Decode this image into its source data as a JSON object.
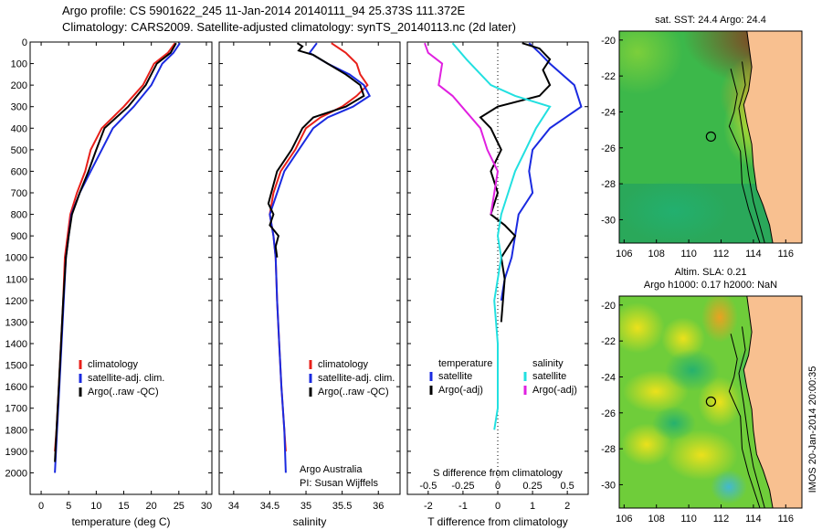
{
  "header": {
    "line1": "Argo profile: CS 5901622_245 11-Jan-2014 20140111_94 25.373S 111.372E",
    "line2": "Climatology: CARS2009. Satellite-adjusted climatology: synTS_20140113.nc (2d later)"
  },
  "colors": {
    "climatology": "#e8201a",
    "satellite": "#1a2ae0",
    "argo": "#000000",
    "sat_salinity": "#22e0e0",
    "argo_salinity": "#e020e0"
  },
  "chart_data": [
    {
      "type": "line",
      "name": "temperature-profile",
      "xlabel": "temperature (deg C)",
      "ylabel": "",
      "xlim": [
        -2,
        31
      ],
      "ylim": [
        0,
        2100
      ],
      "xticks": [
        0,
        5,
        10,
        15,
        20,
        25,
        30
      ],
      "yticks": [
        0,
        100,
        200,
        300,
        400,
        500,
        600,
        700,
        800,
        900,
        1000,
        1100,
        1200,
        1300,
        1400,
        1500,
        1600,
        1700,
        1800,
        1900,
        2000
      ],
      "legend": [
        "climatology",
        "satellite-adj. clim.",
        "Argo(..raw -QC)"
      ],
      "series": [
        {
          "key": "clim",
          "color": "#e8201a",
          "points": [
            [
              24.3,
              5
            ],
            [
              23,
              50
            ],
            [
              20.5,
              100
            ],
            [
              18.5,
              200
            ],
            [
              15,
              300
            ],
            [
              11,
              400
            ],
            [
              9,
              500
            ],
            [
              8,
              600
            ],
            [
              6.5,
              700
            ],
            [
              5.3,
              800
            ],
            [
              4.8,
              900
            ],
            [
              4.3,
              1000
            ],
            [
              4,
              1200
            ],
            [
              3.6,
              1400
            ],
            [
              3.2,
              1600
            ],
            [
              2.8,
              1800
            ],
            [
              2.5,
              1900
            ]
          ]
        },
        {
          "key": "sat",
          "color": "#1a2ae0",
          "points": [
            [
              25.2,
              5
            ],
            [
              24,
              50
            ],
            [
              22,
              100
            ],
            [
              20,
              200
            ],
            [
              16.8,
              300
            ],
            [
              13,
              400
            ],
            [
              11,
              500
            ],
            [
              9,
              600
            ],
            [
              7,
              700
            ],
            [
              5.5,
              800
            ],
            [
              5,
              900
            ],
            [
              4.5,
              1000
            ],
            [
              4.1,
              1200
            ],
            [
              3.7,
              1400
            ],
            [
              3.3,
              1600
            ],
            [
              2.9,
              1800
            ],
            [
              2.5,
              2000
            ]
          ]
        },
        {
          "key": "argo",
          "color": "#000000",
          "points": [
            [
              24.5,
              5
            ],
            [
              23.5,
              50
            ],
            [
              21,
              100
            ],
            [
              19,
              200
            ],
            [
              15.8,
              300
            ],
            [
              11.5,
              400
            ],
            [
              10,
              500
            ],
            [
              8.6,
              600
            ],
            [
              7,
              700
            ],
            [
              5.6,
              800
            ],
            [
              5,
              900
            ],
            [
              4.5,
              1000
            ],
            [
              4,
              1200
            ],
            [
              3.6,
              1400
            ],
            [
              3.2,
              1600
            ],
            [
              2.8,
              1800
            ],
            [
              2.5,
              1950
            ]
          ]
        }
      ]
    },
    {
      "type": "line",
      "name": "salinity-profile",
      "xlabel": "salinity",
      "ylabel": "",
      "xlim": [
        33.8,
        36.3
      ],
      "ylim": [
        0,
        2100
      ],
      "xticks": [
        34,
        34.5,
        35,
        35.5,
        36
      ],
      "legend": [
        "climatology",
        "satellite-adj. clim.",
        "Argo(..raw -QC)"
      ],
      "annotation": [
        "Argo Australia",
        "PI: Susan Wijffels"
      ],
      "series": [
        {
          "key": "clim",
          "color": "#e8201a",
          "points": [
            [
              35.35,
              5
            ],
            [
              35.55,
              50
            ],
            [
              35.7,
              100
            ],
            [
              35.75,
              150
            ],
            [
              35.85,
              200
            ],
            [
              35.7,
              250
            ],
            [
              35.5,
              300
            ],
            [
              35.2,
              350
            ],
            [
              35,
              400
            ],
            [
              34.85,
              500
            ],
            [
              34.65,
              600
            ],
            [
              34.55,
              700
            ],
            [
              34.5,
              800
            ],
            [
              34.55,
              900
            ],
            [
              34.58,
              1000
            ],
            [
              34.6,
              1200
            ],
            [
              34.63,
              1400
            ],
            [
              34.66,
              1600
            ],
            [
              34.7,
              1800
            ],
            [
              34.72,
              1900
            ]
          ]
        },
        {
          "key": "sat",
          "color": "#1a2ae0",
          "points": [
            [
              35.15,
              5
            ],
            [
              35.05,
              50
            ],
            [
              35.3,
              100
            ],
            [
              35.6,
              150
            ],
            [
              35.8,
              200
            ],
            [
              35.88,
              250
            ],
            [
              35.65,
              300
            ],
            [
              35.3,
              350
            ],
            [
              35.1,
              400
            ],
            [
              34.9,
              500
            ],
            [
              34.7,
              600
            ],
            [
              34.6,
              700
            ],
            [
              34.5,
              800
            ],
            [
              34.55,
              900
            ],
            [
              34.58,
              1000
            ],
            [
              34.6,
              1200
            ],
            [
              34.63,
              1400
            ],
            [
              34.66,
              1600
            ],
            [
              34.7,
              1800
            ],
            [
              34.72,
              2000
            ]
          ]
        },
        {
          "key": "argo",
          "color": "#000000",
          "points": [
            [
              34.88,
              5
            ],
            [
              34.95,
              20
            ],
            [
              34.9,
              40
            ],
            [
              35.1,
              60
            ],
            [
              35.3,
              100
            ],
            [
              35.55,
              150
            ],
            [
              35.75,
              200
            ],
            [
              35.8,
              250
            ],
            [
              35.55,
              300
            ],
            [
              35.1,
              350
            ],
            [
              34.95,
              400
            ],
            [
              34.8,
              500
            ],
            [
              34.6,
              600
            ],
            [
              34.52,
              700
            ],
            [
              34.48,
              750
            ],
            [
              34.55,
              800
            ],
            [
              34.5,
              850
            ],
            [
              34.62,
              900
            ],
            [
              34.58,
              950
            ],
            [
              34.6,
              1000
            ]
          ]
        }
      ]
    },
    {
      "type": "line",
      "name": "difference-profile",
      "xlabel": "T difference from climatology",
      "x2label": "S difference from climatology",
      "xlim": [
        -2.6,
        2.6
      ],
      "ylim": [
        0,
        2100
      ],
      "xticks": [
        -2,
        -1,
        0,
        1,
        2
      ],
      "x2ticklabels": [
        "-0.5",
        "-0.25",
        "0",
        "0.25",
        "0.5"
      ],
      "legend": {
        "temperature": [
          "satellite",
          "Argo(-adj)"
        ],
        "salinity": [
          "satellite",
          "Argo(-adj)"
        ]
      },
      "series": [
        {
          "key": "T sat",
          "color": "#1a2ae0",
          "points": [
            [
              0.9,
              5
            ],
            [
              1.2,
              50
            ],
            [
              1.5,
              100
            ],
            [
              2.2,
              200
            ],
            [
              2.4,
              300
            ],
            [
              1.5,
              400
            ],
            [
              1,
              500
            ],
            [
              0.9,
              600
            ],
            [
              1,
              700
            ],
            [
              0.6,
              800
            ],
            [
              0.5,
              900
            ],
            [
              0.4,
              1000
            ],
            [
              0.2,
              1100
            ],
            [
              0.1,
              1200
            ]
          ]
        },
        {
          "key": "T argo",
          "color": "#000000",
          "points": [
            [
              0.7,
              5
            ],
            [
              1.2,
              30
            ],
            [
              1.5,
              80
            ],
            [
              1.3,
              130
            ],
            [
              1.5,
              200
            ],
            [
              1.2,
              250
            ],
            [
              0,
              300
            ],
            [
              -0.5,
              350
            ],
            [
              -0.2,
              400
            ],
            [
              0.1,
              500
            ],
            [
              -0.2,
              600
            ],
            [
              0,
              700
            ],
            [
              -0.2,
              800
            ],
            [
              0.2,
              850
            ],
            [
              0.5,
              900
            ],
            [
              0.1,
              1000
            ],
            [
              0.2,
              1100
            ],
            [
              0.1,
              1300
            ]
          ]
        },
        {
          "key": "S sat",
          "color": "#22e0e0",
          "points": [
            [
              -1.3,
              5
            ],
            [
              -0.9,
              80
            ],
            [
              -0.2,
              200
            ],
            [
              0.5,
              250
            ],
            [
              1.5,
              300
            ],
            [
              1.1,
              400
            ],
            [
              0.8,
              500
            ],
            [
              0.5,
              600
            ],
            [
              0.3,
              700
            ],
            [
              0.1,
              800
            ],
            [
              0,
              900
            ],
            [
              0.1,
              1000
            ],
            [
              -0.1,
              1200
            ],
            [
              0,
              1400
            ],
            [
              0,
              1700
            ],
            [
              -0.1,
              1800
            ]
          ]
        },
        {
          "key": "S argo",
          "color": "#e020e0",
          "points": [
            [
              -2.1,
              5
            ],
            [
              -2,
              50
            ],
            [
              -1.6,
              100
            ],
            [
              -1.7,
              200
            ],
            [
              -1.3,
              250
            ],
            [
              -0.5,
              400
            ],
            [
              -0.3,
              500
            ],
            [
              0,
              600
            ],
            [
              -0.1,
              700
            ],
            [
              -0.2,
              800
            ]
          ]
        }
      ]
    },
    {
      "type": "heatmap",
      "name": "sst-map",
      "title": "sat. SST: 24.4 Argo: 24.4",
      "xlim": [
        105.7,
        117
      ],
      "ylim": [
        -31.3,
        -19.5
      ],
      "xticks": [
        106,
        108,
        110,
        112,
        114,
        116
      ],
      "yticks": [
        -20,
        -22,
        -24,
        -26,
        -28,
        -30
      ],
      "marker": [
        111.372,
        -25.373
      ]
    },
    {
      "type": "heatmap",
      "name": "sla-map",
      "title": "Altim. SLA: 0.21",
      "subtitle": "Argo h1000: 0.17 h2000: NaN",
      "xlim": [
        105.7,
        117
      ],
      "ylim": [
        -31.3,
        -19.5
      ],
      "xticks": [
        106,
        108,
        110,
        112,
        114,
        116
      ],
      "yticks": [
        -20,
        -22,
        -24,
        -26,
        -28,
        -30
      ],
      "marker": [
        111.372,
        -25.373
      ]
    }
  ],
  "credit": "IMOS 20-Jan-2014 20:00:35"
}
